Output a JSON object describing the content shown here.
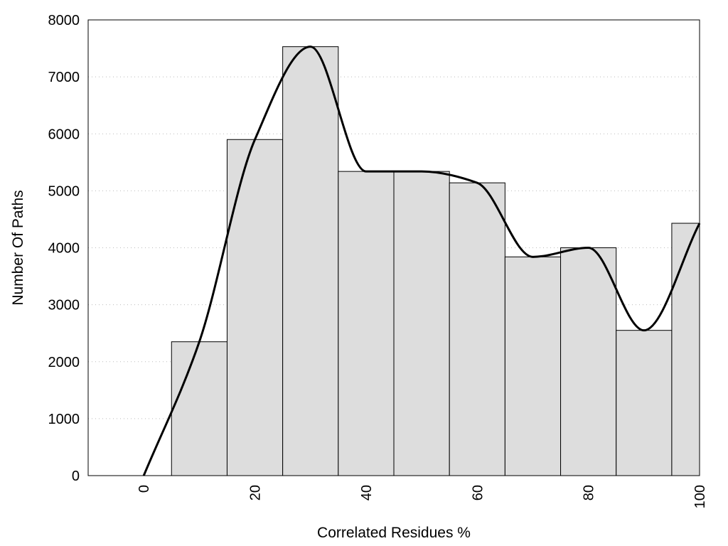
{
  "chart_data": {
    "type": "bar",
    "xlabel": "Correlated Residues %",
    "ylabel": "Number Of Paths",
    "xlim": [
      -10,
      100
    ],
    "ylim": [
      0,
      8000
    ],
    "x_ticks": [
      0,
      20,
      40,
      60,
      80,
      100
    ],
    "y_ticks": [
      0,
      1000,
      2000,
      3000,
      4000,
      5000,
      6000,
      7000,
      8000
    ],
    "grid": true,
    "bin_width": 10,
    "bins": [
      {
        "x": 10,
        "value": 2350
      },
      {
        "x": 20,
        "value": 5900
      },
      {
        "x": 30,
        "value": 7530
      },
      {
        "x": 40,
        "value": 5340
      },
      {
        "x": 50,
        "value": 5340
      },
      {
        "x": 60,
        "value": 5140
      },
      {
        "x": 70,
        "value": 3840
      },
      {
        "x": 80,
        "value": 4000
      },
      {
        "x": 90,
        "value": 2550
      },
      {
        "x": 100,
        "value": 4430
      }
    ],
    "curve": {
      "x": [
        0,
        10,
        20,
        30,
        40,
        50,
        60,
        70,
        80,
        90,
        100
      ],
      "y": [
        0,
        2350,
        5900,
        7530,
        5340,
        5340,
        5140,
        3840,
        4000,
        2550,
        4430
      ]
    }
  }
}
